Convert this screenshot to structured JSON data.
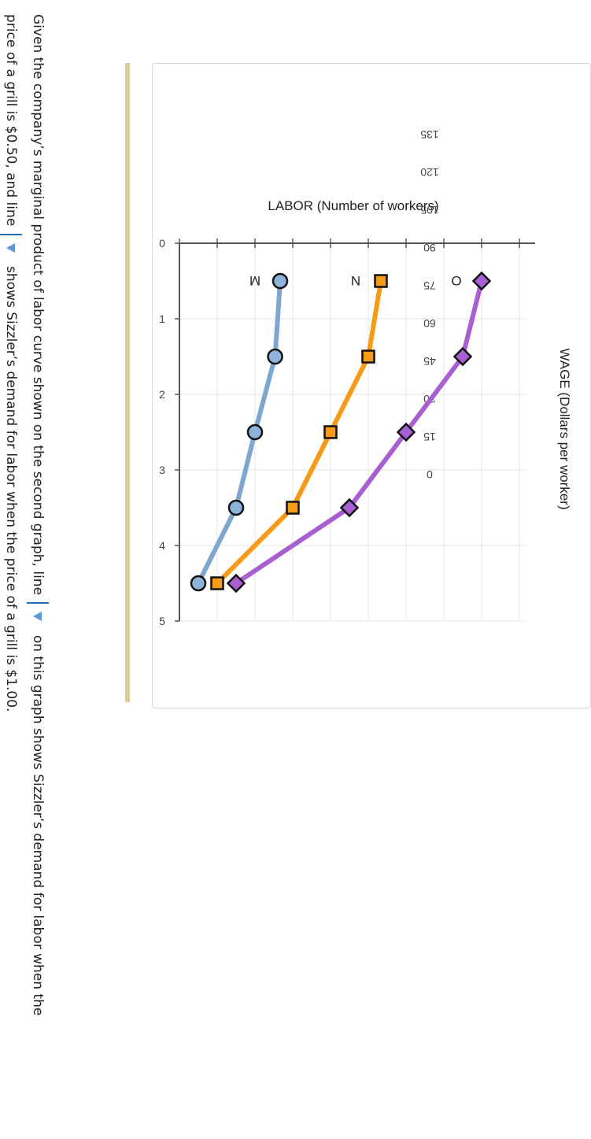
{
  "chart_data": {
    "type": "line",
    "xlabel": "LABOR (Number of workers)",
    "ylabel": "WAGE (Dollars per worker)",
    "xlim": [
      0,
      5
    ],
    "ylim": [
      0,
      135
    ],
    "xticks": [
      "0",
      "1",
      "2",
      "3",
      "4",
      "5"
    ],
    "yticks": [
      "0",
      "15",
      "30",
      "45",
      "60",
      "75",
      "90",
      "105",
      "120",
      "135"
    ],
    "grid": true,
    "series": [
      {
        "name": "M",
        "color": "#7ea7d0",
        "marker": "circle",
        "marker_fill": "#8db4da",
        "x": [
          0.5,
          1.5,
          2.5,
          3.5,
          4.5
        ],
        "y": [
          40,
          38,
          30,
          22.5,
          7.5
        ]
      },
      {
        "name": "N",
        "color": "#f79a17",
        "marker": "square",
        "marker_fill": "#f79a17",
        "x": [
          0.5,
          1.5,
          2.5,
          3.5,
          4.5
        ],
        "y": [
          80,
          75,
          60,
          45,
          15
        ]
      },
      {
        "name": "O",
        "color": "#a95fd2",
        "marker": "diamond",
        "marker_fill": "#a95fd2",
        "x": [
          0.5,
          1.5,
          2.5,
          3.5,
          4.5
        ],
        "y": [
          120,
          112.5,
          90,
          67.5,
          22.5
        ]
      }
    ]
  },
  "question": {
    "part1": "Given the company’s marginal product of labor curve shown on the second graph, line",
    "part2": "on this graph shows Sizzler’s demand for labor when the",
    "part3": "price of a grill is $0.50, and line",
    "part4": "shows Sizzler’s demand for labor when the price of a grill is $1.00."
  },
  "colors": {
    "accent_bar": "#d9cd9c",
    "grid": "#e6e6e6",
    "axis": "#555555",
    "dropdown": "#2a6fb0"
  }
}
